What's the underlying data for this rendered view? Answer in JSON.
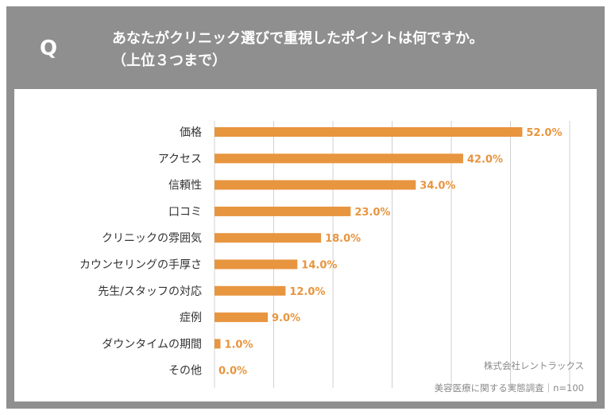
{
  "header": {
    "q_label": "Q",
    "title_line1": "あなたがクリニック選びで重視したポイントは何ですか。",
    "title_line2": "（上位３つまで）"
  },
  "chart_data": {
    "type": "bar",
    "orientation": "horizontal",
    "title": "",
    "xlabel": "",
    "ylabel": "",
    "xlim": [
      0,
      60
    ],
    "grid": true,
    "categories": [
      "価格",
      "アクセス",
      "信頼性",
      "口コミ",
      "クリニックの雰囲気",
      "カウンセリングの手厚さ",
      "先生/スタッフの対応",
      "症例",
      "ダウンタイムの期間",
      "その他"
    ],
    "values": [
      52.0,
      42.0,
      34.0,
      23.0,
      18.0,
      14.0,
      12.0,
      9.0,
      1.0,
      0.0
    ],
    "value_labels": [
      "52.0%",
      "42.0%",
      "34.0%",
      "23.0%",
      "18.0%",
      "14.0%",
      "12.0%",
      "9.0%",
      "1.0%",
      "0.0%"
    ],
    "bar_color": "#e8953f",
    "grid_color": "#d0d0d0"
  },
  "source": {
    "company": "株式会社レントラックス",
    "survey": "美容医療に関する実態調査｜n=100"
  }
}
